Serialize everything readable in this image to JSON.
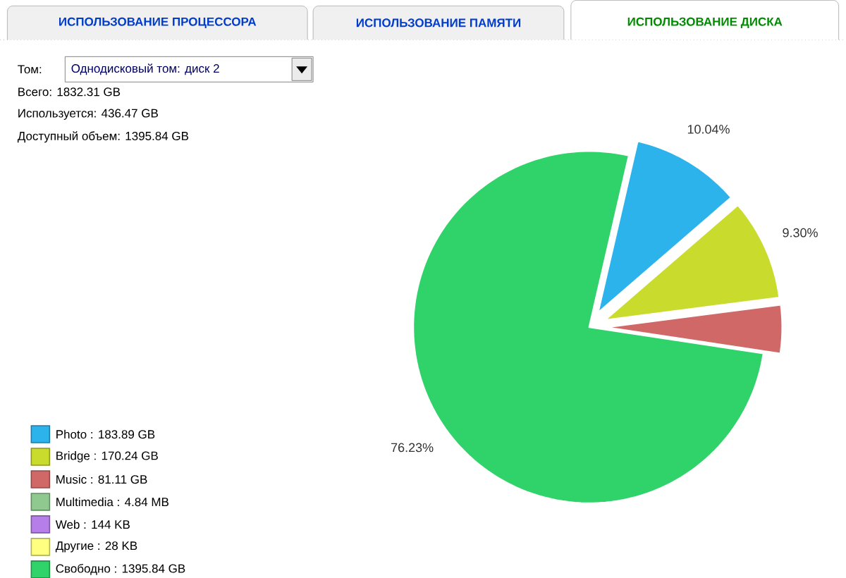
{
  "chart_data": {
    "type": "pie",
    "categories": [
      "Photo : 183.89 GB",
      "Bridge : 170.24 GB",
      "Music : 81.11 GB",
      "Multimedia : 4.84 MB",
      "Web : 144 KB",
      "Другие : 28 KB",
      "Свободно : 1395.84 GB"
    ],
    "values": [
      10.04,
      9.3,
      4.43,
      0,
      0,
      0,
      76.23
    ],
    "colors": [
      "#2db3ec",
      "#c9db2c",
      "#d06868",
      "#8fc98f",
      "#b57ee8",
      "#ffff80",
      "#30d36a"
    ],
    "value_labels": [
      "10.04%",
      "9.30%",
      null,
      null,
      null,
      null,
      "76.23%"
    ],
    "legend": "bottom left",
    "annotations": [
      "ИСПОЛЬЗОВАНИЕ ПРОЦЕССОРА",
      "ИСПОЛЬЗОВАНИЕ ПАМЯТИ",
      "ИСПОЛЬЗОВАНИЕ ДИСКА",
      "Том:",
      "Однодисковый том: диск 2",
      "Всего: 1832.31 GB",
      "Используется: 436.47 GB",
      "Доступный объем: 1395.84 GB"
    ]
  }
}
